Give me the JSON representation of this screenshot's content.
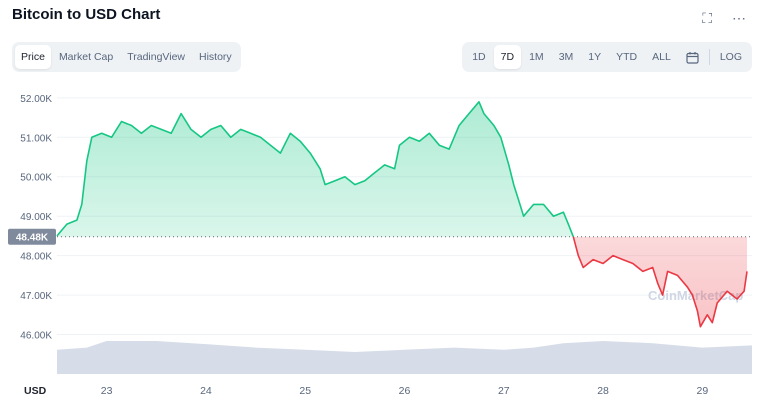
{
  "header": {
    "title": "Bitcoin to USD Chart",
    "fullscreen_icon": "fullscreen-icon",
    "more_icon": "more-icon",
    "fullscreen_glyph": "⛶",
    "more_glyph": "⋯"
  },
  "tabs": [
    {
      "label": "Price",
      "active": true
    },
    {
      "label": "Market Cap",
      "active": false
    },
    {
      "label": "TradingView",
      "active": false
    },
    {
      "label": "History",
      "active": false
    }
  ],
  "ranges": [
    {
      "label": "1D",
      "active": false
    },
    {
      "label": "7D",
      "active": true
    },
    {
      "label": "1M",
      "active": false
    },
    {
      "label": "3M",
      "active": false
    },
    {
      "label": "1Y",
      "active": false
    },
    {
      "label": "YTD",
      "active": false
    },
    {
      "label": "ALL",
      "active": false
    }
  ],
  "calendar_icon": "calendar-icon",
  "log_label": "LOG",
  "watermark": "CoinMarketCap",
  "colors": {
    "up": "#16c784",
    "down": "#ea3943",
    "volume": "#cfd6e4",
    "grid": "#eff2f5",
    "baseline_tag": "#808a9d"
  },
  "chart_data": {
    "type": "line",
    "title": "Bitcoin to USD Chart",
    "currency_label": "USD",
    "baseline_label": "48.48K",
    "baseline_value": 48480,
    "ylim": [
      45000,
      52300
    ],
    "y_ticks": [
      {
        "value": 46000,
        "label": "46.00K"
      },
      {
        "value": 47000,
        "label": "47.00K"
      },
      {
        "value": 48000,
        "label": "48.00K"
      },
      {
        "value": 49000,
        "label": "49.00K"
      },
      {
        "value": 50000,
        "label": "50.00K"
      },
      {
        "value": 51000,
        "label": "51.00K"
      },
      {
        "value": 52000,
        "label": "52.00K"
      }
    ],
    "xlim": [
      22.5,
      29.5
    ],
    "x_ticks": [
      {
        "value": 23,
        "label": "23"
      },
      {
        "value": 24,
        "label": "24"
      },
      {
        "value": 25,
        "label": "25"
      },
      {
        "value": 26,
        "label": "26"
      },
      {
        "value": 27,
        "label": "27"
      },
      {
        "value": 28,
        "label": "28"
      },
      {
        "value": 29,
        "label": "29"
      }
    ],
    "series": [
      {
        "points": [
          [
            22.5,
            48500
          ],
          [
            22.6,
            48800
          ],
          [
            22.7,
            48900
          ],
          [
            22.75,
            49300
          ],
          [
            22.8,
            50400
          ],
          [
            22.85,
            51000
          ],
          [
            22.95,
            51100
          ],
          [
            23.05,
            51000
          ],
          [
            23.15,
            51400
          ],
          [
            23.25,
            51300
          ],
          [
            23.35,
            51100
          ],
          [
            23.45,
            51300
          ],
          [
            23.55,
            51200
          ],
          [
            23.65,
            51100
          ],
          [
            23.75,
            51600
          ],
          [
            23.85,
            51200
          ],
          [
            23.95,
            51000
          ],
          [
            24.05,
            51200
          ],
          [
            24.15,
            51300
          ],
          [
            24.25,
            51000
          ],
          [
            24.35,
            51200
          ],
          [
            24.45,
            51100
          ],
          [
            24.55,
            51000
          ],
          [
            24.65,
            50800
          ],
          [
            24.75,
            50600
          ],
          [
            24.85,
            51100
          ],
          [
            24.95,
            50900
          ],
          [
            25.05,
            50600
          ],
          [
            25.15,
            50200
          ],
          [
            25.2,
            49800
          ],
          [
            25.3,
            49900
          ],
          [
            25.4,
            50000
          ],
          [
            25.5,
            49800
          ],
          [
            25.6,
            49900
          ],
          [
            25.7,
            50100
          ],
          [
            25.8,
            50300
          ],
          [
            25.9,
            50200
          ],
          [
            25.95,
            50800
          ],
          [
            26.05,
            51000
          ],
          [
            26.15,
            50900
          ],
          [
            26.25,
            51100
          ],
          [
            26.35,
            50800
          ],
          [
            26.45,
            50700
          ],
          [
            26.55,
            51300
          ],
          [
            26.65,
            51600
          ],
          [
            26.75,
            51900
          ],
          [
            26.8,
            51600
          ],
          [
            26.9,
            51300
          ],
          [
            26.97,
            51000
          ],
          [
            27.05,
            50300
          ],
          [
            27.1,
            49800
          ],
          [
            27.15,
            49400
          ],
          [
            27.2,
            49000
          ],
          [
            27.3,
            49300
          ],
          [
            27.4,
            49300
          ],
          [
            27.5,
            49000
          ],
          [
            27.6,
            49100
          ],
          [
            27.65,
            48800
          ],
          [
            27.7,
            48480
          ],
          [
            27.75,
            48000
          ],
          [
            27.8,
            47700
          ],
          [
            27.9,
            47900
          ],
          [
            28.0,
            47800
          ],
          [
            28.1,
            48000
          ],
          [
            28.2,
            47900
          ],
          [
            28.3,
            47800
          ],
          [
            28.4,
            47600
          ],
          [
            28.5,
            47700
          ],
          [
            28.55,
            47300
          ],
          [
            28.6,
            47000
          ],
          [
            28.65,
            47600
          ],
          [
            28.75,
            47500
          ],
          [
            28.85,
            47200
          ],
          [
            28.9,
            47000
          ],
          [
            28.95,
            46600
          ],
          [
            28.98,
            46200
          ],
          [
            29.05,
            46500
          ],
          [
            29.1,
            46300
          ],
          [
            29.15,
            46800
          ],
          [
            29.25,
            47100
          ],
          [
            29.35,
            46900
          ],
          [
            29.42,
            47100
          ],
          [
            29.45,
            47600
          ]
        ]
      },
      {
        "name": "volume",
        "points": [
          [
            22.5,
            0.55
          ],
          [
            22.8,
            0.6
          ],
          [
            23.0,
            0.75
          ],
          [
            23.5,
            0.75
          ],
          [
            24.0,
            0.68
          ],
          [
            24.5,
            0.6
          ],
          [
            25.0,
            0.55
          ],
          [
            25.5,
            0.5
          ],
          [
            26.0,
            0.55
          ],
          [
            26.5,
            0.6
          ],
          [
            27.0,
            0.55
          ],
          [
            27.3,
            0.6
          ],
          [
            27.6,
            0.7
          ],
          [
            28.0,
            0.75
          ],
          [
            28.5,
            0.7
          ],
          [
            29.0,
            0.6
          ],
          [
            29.5,
            0.65
          ]
        ]
      }
    ]
  }
}
